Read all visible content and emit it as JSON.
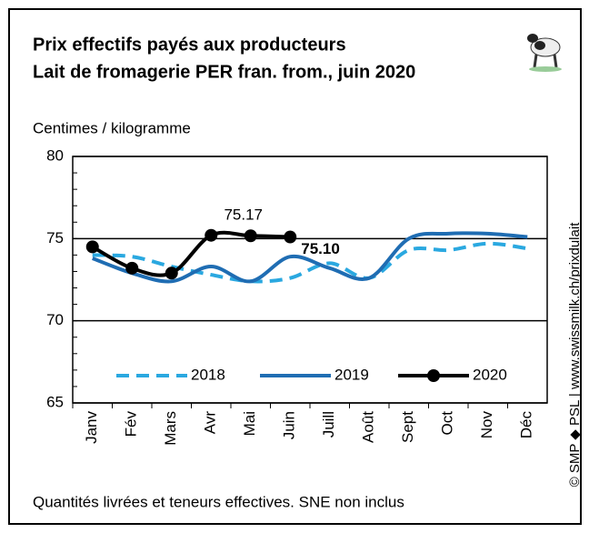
{
  "chart_data": {
    "type": "line",
    "title": "Prix effectifs payés aux producteurs",
    "subtitle": "Lait de fromagerie PER fran. from., juin 2020",
    "y_label": "Centimes / kilogramme",
    "note": "Quantités livrées et teneurs effectives.  SNE non inclus",
    "source": "© SMP ◆ PSL | www.swissmilk.ch/prixdulait",
    "categories": [
      "Janv",
      "Fév",
      "Mars",
      "Avr",
      "Mai",
      "Juin",
      "Juill",
      "Août",
      "Sept",
      "Oct",
      "Nov",
      "Déc"
    ],
    "series": [
      {
        "name": "2018",
        "color": "#2aa8e0",
        "dashed": true,
        "markers": false,
        "values": [
          74.0,
          73.9,
          73.3,
          72.8,
          72.4,
          72.6,
          73.5,
          72.6,
          74.3,
          74.3,
          74.7,
          74.4
        ]
      },
      {
        "name": "2019",
        "color": "#1f6db3",
        "dashed": false,
        "markers": false,
        "values": [
          73.8,
          72.9,
          72.4,
          73.3,
          72.4,
          73.9,
          73.2,
          72.6,
          75.0,
          75.3,
          75.3,
          75.1
        ]
      },
      {
        "name": "2020",
        "color": "#000000",
        "dashed": false,
        "markers": true,
        "values": [
          74.5,
          73.2,
          72.9,
          75.2,
          75.17,
          75.1,
          null,
          null,
          null,
          null,
          null,
          null
        ],
        "value_labels": [
          null,
          null,
          null,
          null,
          "75.17",
          "75.10",
          null,
          null,
          null,
          null,
          null,
          null
        ]
      }
    ],
    "ylim": [
      65,
      80
    ],
    "yticks": [
      65,
      70,
      75,
      80
    ],
    "grid": true
  }
}
